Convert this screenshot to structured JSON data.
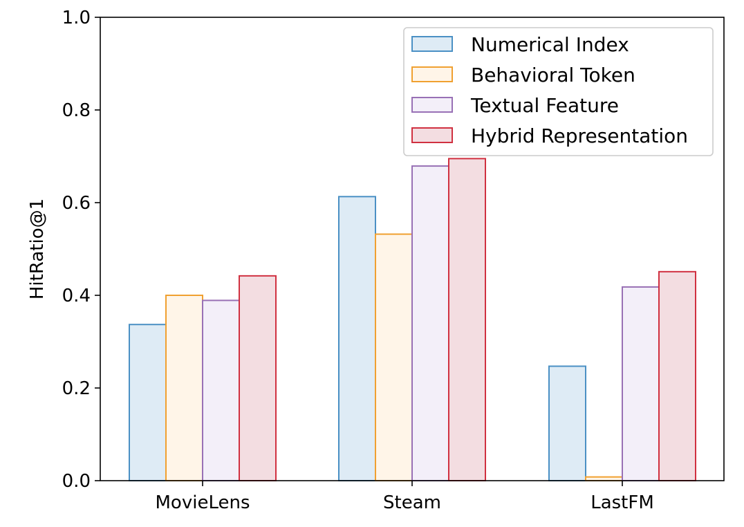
{
  "chart_data": {
    "type": "bar",
    "categories": [
      "MovieLens",
      "Steam",
      "LastFM"
    ],
    "series": [
      {
        "name": "Numerical Index",
        "values": [
          0.337,
          0.613,
          0.247
        ],
        "edge_color": "#4a90c4",
        "fill_color": "#deebf5"
      },
      {
        "name": "Behavioral Token",
        "values": [
          0.4,
          0.532,
          0.008
        ],
        "edge_color": "#f0a030",
        "fill_color": "#fff5e8"
      },
      {
        "name": "Textual Feature",
        "values": [
          0.389,
          0.679,
          0.418
        ],
        "edge_color": "#9870b5",
        "fill_color": "#f3eff9"
      },
      {
        "name": "Hybrid Representation",
        "values": [
          0.442,
          0.695,
          0.451
        ],
        "edge_color": "#d03040",
        "fill_color": "#f3dde1"
      }
    ],
    "ylabel": "HitRatio@1",
    "xlabel": "",
    "ylim": [
      0.0,
      1.0
    ],
    "yticks": [
      "0.0",
      "0.2",
      "0.4",
      "0.6",
      "0.8",
      "1.0"
    ],
    "legend_position": "upper right",
    "grid": false
  }
}
